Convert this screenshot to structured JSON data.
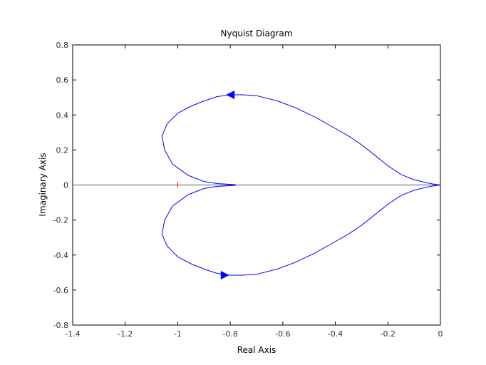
{
  "chart_data": {
    "type": "line",
    "title": "Nyquist Diagram",
    "xlabel": "Real Axis",
    "ylabel": "Imaginary Axis",
    "xlim": [
      -1.4,
      0
    ],
    "ylim": [
      -0.8,
      0.8
    ],
    "xticks": [
      "-1.4",
      "-1.2",
      "-1",
      "-0.8",
      "-0.6",
      "-0.4",
      "-0.2",
      "0"
    ],
    "yticks": [
      "0.8",
      "0.6",
      "0.4",
      "0.2",
      "0",
      "-0.2",
      "-0.4",
      "-0.6",
      "-0.8"
    ],
    "grid": false,
    "colors": {
      "curve": "#0000ff",
      "critical_point": "#ff0000",
      "axes": "#000000",
      "zero_line": "#555555"
    },
    "critical_point": {
      "x": -1,
      "y": 0
    },
    "series": [
      {
        "x": [
          -0.78,
          -0.85,
          -0.9,
          -0.96,
          -1.02,
          -1.05,
          -1.06,
          -1.04,
          -1.0,
          -0.95,
          -0.9,
          -0.85,
          -0.8,
          -0.75,
          -0.7,
          -0.62,
          -0.55,
          -0.48,
          -0.42,
          -0.35,
          -0.3,
          -0.25,
          -0.2,
          -0.15,
          -0.1,
          -0.06,
          -0.03,
          -0.01,
          0.0
        ],
        "y": [
          0.002,
          0.008,
          0.02,
          0.055,
          0.12,
          0.2,
          0.28,
          0.35,
          0.41,
          0.45,
          0.48,
          0.505,
          0.515,
          0.515,
          0.51,
          0.48,
          0.44,
          0.39,
          0.34,
          0.28,
          0.23,
          0.17,
          0.11,
          0.06,
          0.03,
          0.015,
          0.006,
          0.002,
          0.0
        ]
      },
      {
        "x": [
          -0.78,
          -0.85,
          -0.9,
          -0.96,
          -1.02,
          -1.05,
          -1.06,
          -1.04,
          -1.0,
          -0.95,
          -0.9,
          -0.85,
          -0.8,
          -0.75,
          -0.7,
          -0.62,
          -0.55,
          -0.48,
          -0.42,
          -0.35,
          -0.3,
          -0.25,
          -0.2,
          -0.15,
          -0.1,
          -0.06,
          -0.03,
          -0.01,
          0.0
        ],
        "y": [
          -0.002,
          -0.008,
          -0.02,
          -0.055,
          -0.12,
          -0.2,
          -0.28,
          -0.35,
          -0.41,
          -0.45,
          -0.48,
          -0.505,
          -0.515,
          -0.515,
          -0.51,
          -0.48,
          -0.44,
          -0.39,
          -0.34,
          -0.28,
          -0.23,
          -0.17,
          -0.11,
          -0.06,
          -0.03,
          -0.015,
          -0.006,
          -0.002,
          0.0
        ]
      }
    ],
    "arrows": [
      {
        "x": -0.8,
        "y": 0.515,
        "direction": "left"
      },
      {
        "x": -0.82,
        "y": -0.515,
        "direction": "right"
      }
    ]
  }
}
